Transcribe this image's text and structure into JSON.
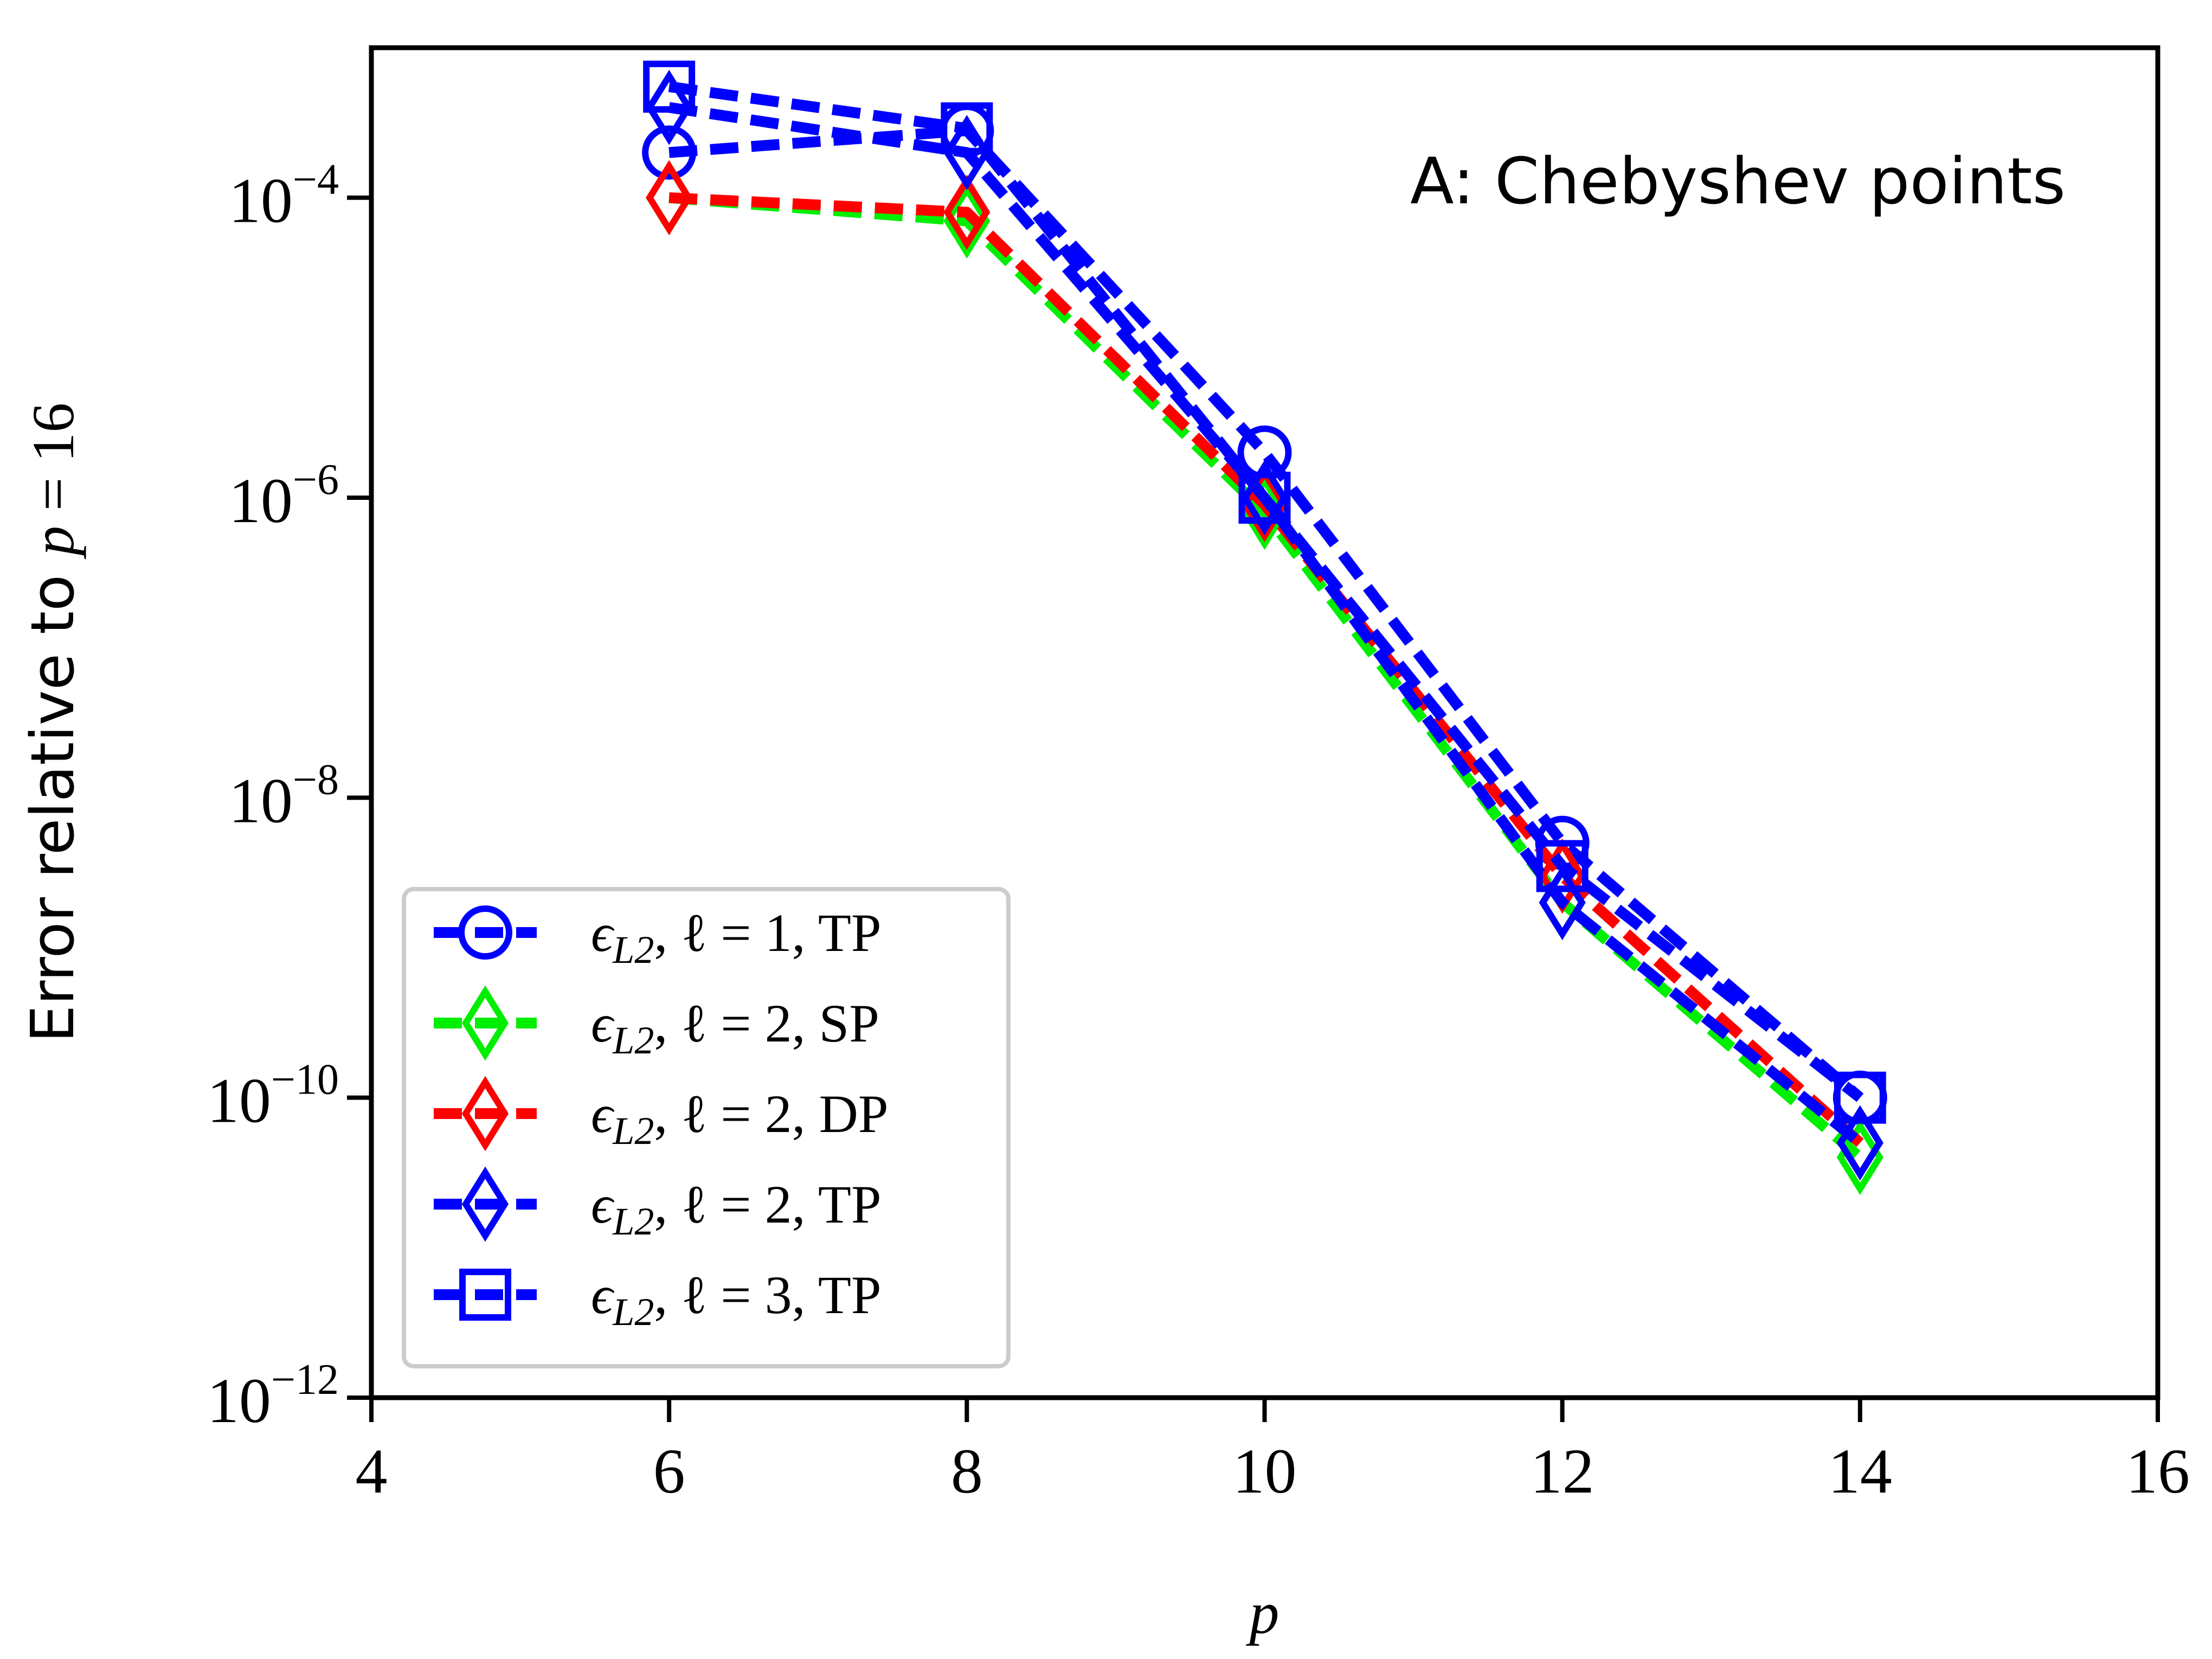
{
  "chart_data": {
    "type": "line",
    "title": "",
    "annotation": "A: Chebyshev points",
    "xlabel": "p",
    "ylabel_prefix": "Error relative to ",
    "ylabel_math": "p",
    "ylabel_suffix": " = 16",
    "xscale": "linear",
    "yscale": "log",
    "xlim": [
      4,
      16
    ],
    "ylim": [
      1e-12,
      0.001
    ],
    "xticks": [
      4,
      6,
      8,
      10,
      12,
      14,
      16
    ],
    "yticks": [
      {
        "value": 0.0001,
        "base": "10",
        "exp": "−4"
      },
      {
        "value": 1e-06,
        "base": "10",
        "exp": "−6"
      },
      {
        "value": 1e-08,
        "base": "10",
        "exp": "−8"
      },
      {
        "value": 1e-10,
        "base": "10",
        "exp": "−10"
      },
      {
        "value": 1e-12,
        "base": "10",
        "exp": "−12"
      }
    ],
    "x": [
      6,
      8,
      10,
      12,
      14
    ],
    "series": [
      {
        "name": "ε_L2, ℓ = 1, TP",
        "label_eps": "ϵ",
        "label_sub": "L2",
        "label_rest": ", ℓ = 1, TP",
        "color": "#0000ff",
        "marker": "circle",
        "values": [
          0.0002,
          0.00028,
          2e-06,
          5e-09,
          1e-10
        ]
      },
      {
        "name": "ε_L2, ℓ = 2, SP",
        "label_eps": "ϵ",
        "label_sub": "L2",
        "label_rest": ", ℓ = 2, SP",
        "color": "#00ee00",
        "marker": "thin_diamond",
        "values": [
          0.0001,
          7e-05,
          8e-07,
          2e-09,
          4e-11
        ]
      },
      {
        "name": "ε_L2, ℓ = 2, DP",
        "label_eps": "ϵ",
        "label_sub": "L2",
        "label_rest": ", ℓ = 2, DP",
        "color": "#ff0000",
        "marker": "thin_diamond",
        "values": [
          0.0001,
          8e-05,
          9e-07,
          3e-09,
          5e-11
        ]
      },
      {
        "name": "ε_L2, ℓ = 2, TP",
        "label_eps": "ϵ",
        "label_sub": "L2",
        "label_rest": ", ℓ = 2, TP",
        "color": "#0000ff",
        "marker": "thin_diamond",
        "values": [
          0.0004,
          0.0002,
          1e-06,
          2e-09,
          5e-11
        ]
      },
      {
        "name": "ε_L2, ℓ = 3, TP",
        "label_eps": "ϵ",
        "label_sub": "L2",
        "label_rest": ", ℓ = 3, TP",
        "color": "#0000ff",
        "marker": "square",
        "values": [
          0.00055,
          0.00029,
          1e-06,
          3.5e-09,
          1e-10
        ]
      }
    ],
    "grid": false,
    "legend_position": "lower-left"
  }
}
